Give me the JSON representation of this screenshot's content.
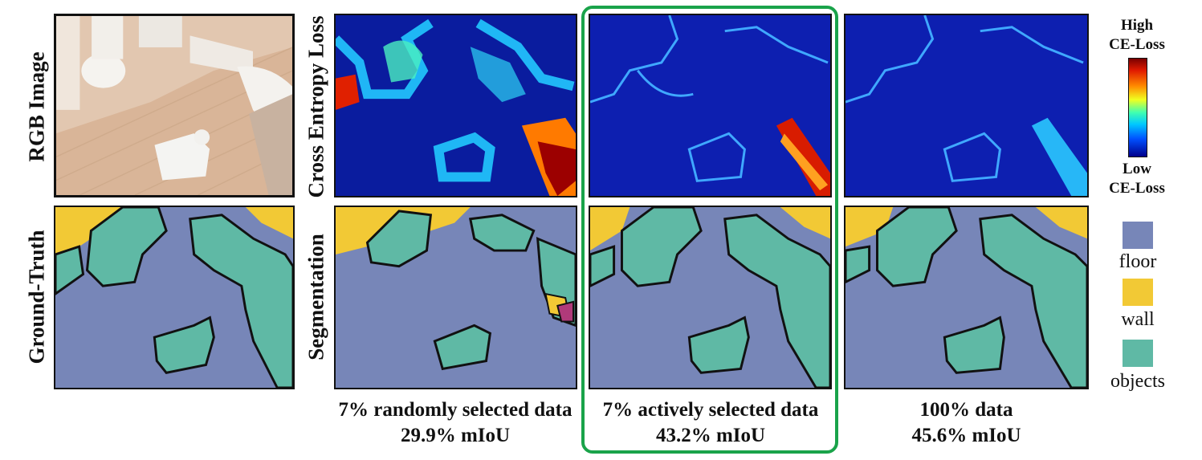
{
  "row_labels": {
    "rgb": "RGB Image",
    "ground_truth": "Ground-Truth",
    "cross_entropy": "Cross Entropy Loss",
    "segmentation": "Segmentation"
  },
  "captions": [
    {
      "setting": "7% randomly selected data",
      "miou": "29.9% mIoU"
    },
    {
      "setting": "7% actively selected data",
      "miou": "43.2% mIoU"
    },
    {
      "setting": "100% data",
      "miou": "45.6% mIoU"
    }
  ],
  "colorbar": {
    "high": "High\nCE-Loss",
    "low": "Low\nCE-Loss"
  },
  "legend": [
    {
      "label": "floor",
      "color": "#7786b8"
    },
    {
      "label": "wall",
      "color": "#f2c935"
    },
    {
      "label": "objects",
      "color": "#5fb9a5"
    }
  ],
  "highlight_color": "#1aa34a"
}
